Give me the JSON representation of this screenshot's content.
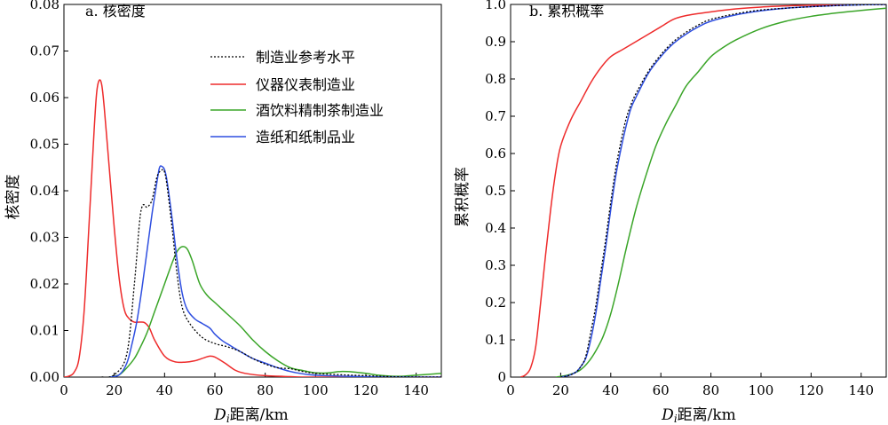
{
  "chart_data": [
    {
      "type": "line",
      "panel_label": "a. 核密度",
      "xlabel_main": "D",
      "xlabel_sub": "i",
      "xlabel_rest": "距离/km",
      "ylabel": "核密度",
      "xlim": [
        0,
        150
      ],
      "ylim": [
        0,
        0.08
      ],
      "xticks": [
        0,
        20,
        40,
        60,
        80,
        100,
        120,
        140
      ],
      "yticks": [
        0,
        0.01,
        0.02,
        0.03,
        0.04,
        0.05,
        0.06,
        0.07,
        0.08
      ],
      "ytick_labels": [
        "0.00",
        "0.01",
        "0.02",
        "0.03",
        "0.04",
        "0.05",
        "0.06",
        "0.07",
        "0.08"
      ],
      "legend_position": "top-right",
      "series": [
        {
          "name": "制造业参考水平",
          "color": "#000000",
          "dash": "2,2",
          "points": [
            [
              15,
              0
            ],
            [
              20,
              0.0005
            ],
            [
              25,
              0.005
            ],
            [
              28,
              0.02
            ],
            [
              30,
              0.033
            ],
            [
              31,
              0.0365
            ],
            [
              32,
              0.037
            ],
            [
              33,
              0.0365
            ],
            [
              35,
              0.038
            ],
            [
              37,
              0.043
            ],
            [
              39,
              0.0445
            ],
            [
              40,
              0.044
            ],
            [
              41,
              0.041
            ],
            [
              43,
              0.032
            ],
            [
              45,
              0.022
            ],
            [
              47,
              0.015
            ],
            [
              50,
              0.0115
            ],
            [
              55,
              0.0085
            ],
            [
              60,
              0.0072
            ],
            [
              65,
              0.0065
            ],
            [
              70,
              0.0055
            ],
            [
              75,
              0.004
            ],
            [
              80,
              0.0028
            ],
            [
              85,
              0.002
            ],
            [
              90,
              0.0018
            ],
            [
              95,
              0.0012
            ],
            [
              100,
              0.0008
            ],
            [
              110,
              0.0005
            ],
            [
              120,
              0.0003
            ],
            [
              130,
              0.0001
            ],
            [
              140,
              0
            ],
            [
              150,
              0
            ]
          ]
        },
        {
          "name": "仪器仪表制造业",
          "color": "#ee2b2b",
          "dash": "",
          "points": [
            [
              0,
              0
            ],
            [
              2,
              0.0002
            ],
            [
              4,
              0.001
            ],
            [
              6,
              0.004
            ],
            [
              8,
              0.014
            ],
            [
              10,
              0.033
            ],
            [
              12,
              0.053
            ],
            [
              13,
              0.061
            ],
            [
              14,
              0.0637
            ],
            [
              15,
              0.0628
            ],
            [
              16,
              0.058
            ],
            [
              18,
              0.045
            ],
            [
              20,
              0.032
            ],
            [
              22,
              0.021
            ],
            [
              24,
              0.0145
            ],
            [
              26,
              0.0125
            ],
            [
              28,
              0.0118
            ],
            [
              30,
              0.0118
            ],
            [
              32,
              0.0117
            ],
            [
              34,
              0.0105
            ],
            [
              36,
              0.008
            ],
            [
              40,
              0.0045
            ],
            [
              44,
              0.0033
            ],
            [
              48,
              0.0032
            ],
            [
              52,
              0.0035
            ],
            [
              56,
              0.0042
            ],
            [
              58,
              0.0045
            ],
            [
              60,
              0.0043
            ],
            [
              64,
              0.003
            ],
            [
              68,
              0.0015
            ],
            [
              72,
              0.0008
            ],
            [
              80,
              0.0003
            ],
            [
              90,
              0.0001
            ],
            [
              100,
              0
            ],
            [
              150,
              0
            ]
          ]
        },
        {
          "name": "酒饮料精制茶制造业",
          "color": "#3aa528",
          "dash": "",
          "points": [
            [
              18,
              0
            ],
            [
              22,
              0.0005
            ],
            [
              25,
              0.002
            ],
            [
              28,
              0.004
            ],
            [
              30,
              0.006
            ],
            [
              33,
              0.0095
            ],
            [
              36,
              0.014
            ],
            [
              40,
              0.02
            ],
            [
              43,
              0.0245
            ],
            [
              45,
              0.027
            ],
            [
              47,
              0.028
            ],
            [
              49,
              0.0275
            ],
            [
              51,
              0.025
            ],
            [
              54,
              0.02
            ],
            [
              57,
              0.0175
            ],
            [
              60,
              0.016
            ],
            [
              65,
              0.0135
            ],
            [
              70,
              0.011
            ],
            [
              75,
              0.008
            ],
            [
              80,
              0.0055
            ],
            [
              85,
              0.0035
            ],
            [
              90,
              0.002
            ],
            [
              95,
              0.0014
            ],
            [
              100,
              0.0009
            ],
            [
              105,
              0.0009
            ],
            [
              110,
              0.0012
            ],
            [
              115,
              0.0011
            ],
            [
              120,
              0.0008
            ],
            [
              125,
              0.0004
            ],
            [
              130,
              0.0002
            ],
            [
              135,
              0.0002
            ],
            [
              140,
              0.0004
            ],
            [
              145,
              0.0006
            ],
            [
              150,
              0.0008
            ]
          ]
        },
        {
          "name": "造纸和纸制品业",
          "color": "#2f4fe0",
          "dash": "",
          "points": [
            [
              18,
              0
            ],
            [
              22,
              0.0005
            ],
            [
              25,
              0.003
            ],
            [
              27,
              0.007
            ],
            [
              29,
              0.012
            ],
            [
              31,
              0.019
            ],
            [
              33,
              0.027
            ],
            [
              35,
              0.035
            ],
            [
              37,
              0.042
            ],
            [
              38,
              0.045
            ],
            [
              39,
              0.0452
            ],
            [
              40,
              0.0445
            ],
            [
              41,
              0.042
            ],
            [
              43,
              0.034
            ],
            [
              45,
              0.025
            ],
            [
              47,
              0.018
            ],
            [
              49,
              0.0145
            ],
            [
              52,
              0.0125
            ],
            [
              55,
              0.0115
            ],
            [
              58,
              0.0105
            ],
            [
              60,
              0.0092
            ],
            [
              63,
              0.0078
            ],
            [
              66,
              0.0068
            ],
            [
              70,
              0.0055
            ],
            [
              75,
              0.004
            ],
            [
              80,
              0.003
            ],
            [
              85,
              0.002
            ],
            [
              90,
              0.0012
            ],
            [
              95,
              0.0007
            ],
            [
              100,
              0.0004
            ],
            [
              110,
              0.0002
            ],
            [
              120,
              0.0001
            ],
            [
              130,
              0
            ],
            [
              150,
              0
            ]
          ]
        }
      ]
    },
    {
      "type": "line",
      "panel_label": "b. 累积概率",
      "xlabel_main": "D",
      "xlabel_sub": "i",
      "xlabel_rest": "距离/km",
      "ylabel": "累积概率",
      "xlim": [
        0,
        150
      ],
      "ylim": [
        0,
        1.0
      ],
      "xticks": [
        0,
        20,
        40,
        60,
        80,
        100,
        120,
        140
      ],
      "yticks": [
        0,
        0.1,
        0.2,
        0.3,
        0.4,
        0.5,
        0.6,
        0.7,
        0.8,
        0.9,
        1.0
      ],
      "ytick_labels": [
        "0",
        "0.1",
        "0.2",
        "0.3",
        "0.4",
        "0.5",
        "0.6",
        "0.7",
        "0.8",
        "0.9",
        "1.0"
      ],
      "series": [
        {
          "name": "制造业参考水平",
          "color": "#000000",
          "dash": "2,2",
          "points": [
            [
              20,
              0
            ],
            [
              23,
              0.004
            ],
            [
              26,
              0.013
            ],
            [
              28,
              0.028
            ],
            [
              30,
              0.055
            ],
            [
              32,
              0.12
            ],
            [
              34,
              0.19
            ],
            [
              36,
              0.28
            ],
            [
              38,
              0.37
            ],
            [
              40,
              0.47
            ],
            [
              42,
              0.56
            ],
            [
              44,
              0.63
            ],
            [
              46,
              0.69
            ],
            [
              48,
              0.73
            ],
            [
              50,
              0.76
            ],
            [
              55,
              0.82
            ],
            [
              60,
              0.865
            ],
            [
              65,
              0.9
            ],
            [
              70,
              0.925
            ],
            [
              75,
              0.945
            ],
            [
              80,
              0.96
            ],
            [
              90,
              0.975
            ],
            [
              100,
              0.985
            ],
            [
              110,
              0.99
            ],
            [
              120,
              0.994
            ],
            [
              130,
              0.997
            ],
            [
              140,
              0.999
            ],
            [
              150,
              1.0
            ]
          ]
        },
        {
          "name": "仪器仪表制造业",
          "color": "#ee2b2b",
          "dash": "",
          "points": [
            [
              4,
              0
            ],
            [
              6,
              0.006
            ],
            [
              8,
              0.025
            ],
            [
              10,
              0.08
            ],
            [
              12,
              0.2
            ],
            [
              14,
              0.33
            ],
            [
              16,
              0.45
            ],
            [
              18,
              0.55
            ],
            [
              20,
              0.62
            ],
            [
              24,
              0.69
            ],
            [
              28,
              0.74
            ],
            [
              32,
              0.79
            ],
            [
              36,
              0.83
            ],
            [
              40,
              0.86
            ],
            [
              45,
              0.88
            ],
            [
              50,
              0.9
            ],
            [
              55,
              0.92
            ],
            [
              60,
              0.94
            ],
            [
              65,
              0.96
            ],
            [
              70,
              0.97
            ],
            [
              80,
              0.98
            ],
            [
              90,
              0.988
            ],
            [
              100,
              0.993
            ],
            [
              110,
              0.996
            ],
            [
              120,
              0.998
            ],
            [
              150,
              1.0
            ]
          ]
        },
        {
          "name": "酒饮料精制茶制造业",
          "color": "#3aa528",
          "dash": "",
          "points": [
            [
              18,
              0
            ],
            [
              22,
              0.004
            ],
            [
              25,
              0.01
            ],
            [
              28,
              0.02
            ],
            [
              31,
              0.04
            ],
            [
              34,
              0.07
            ],
            [
              37,
              0.11
            ],
            [
              40,
              0.17
            ],
            [
              43,
              0.25
            ],
            [
              46,
              0.34
            ],
            [
              50,
              0.45
            ],
            [
              54,
              0.54
            ],
            [
              58,
              0.62
            ],
            [
              62,
              0.68
            ],
            [
              66,
              0.73
            ],
            [
              70,
              0.78
            ],
            [
              75,
              0.82
            ],
            [
              80,
              0.86
            ],
            [
              85,
              0.885
            ],
            [
              90,
              0.905
            ],
            [
              100,
              0.935
            ],
            [
              110,
              0.955
            ],
            [
              120,
              0.968
            ],
            [
              130,
              0.977
            ],
            [
              140,
              0.984
            ],
            [
              150,
              0.99
            ]
          ]
        },
        {
          "name": "造纸和纸制品业",
          "color": "#2f4fe0",
          "dash": "",
          "points": [
            [
              20,
              0
            ],
            [
              23,
              0.004
            ],
            [
              26,
              0.013
            ],
            [
              28,
              0.028
            ],
            [
              30,
              0.05
            ],
            [
              32,
              0.1
            ],
            [
              34,
              0.17
            ],
            [
              36,
              0.26
            ],
            [
              38,
              0.35
            ],
            [
              40,
              0.45
            ],
            [
              42,
              0.54
            ],
            [
              44,
              0.61
            ],
            [
              46,
              0.67
            ],
            [
              48,
              0.72
            ],
            [
              50,
              0.75
            ],
            [
              55,
              0.815
            ],
            [
              60,
              0.86
            ],
            [
              65,
              0.895
            ],
            [
              70,
              0.92
            ],
            [
              75,
              0.94
            ],
            [
              80,
              0.955
            ],
            [
              90,
              0.972
            ],
            [
              100,
              0.983
            ],
            [
              110,
              0.99
            ],
            [
              120,
              0.994
            ],
            [
              130,
              0.997
            ],
            [
              140,
              0.999
            ],
            [
              150,
              1.0
            ]
          ]
        }
      ]
    }
  ]
}
